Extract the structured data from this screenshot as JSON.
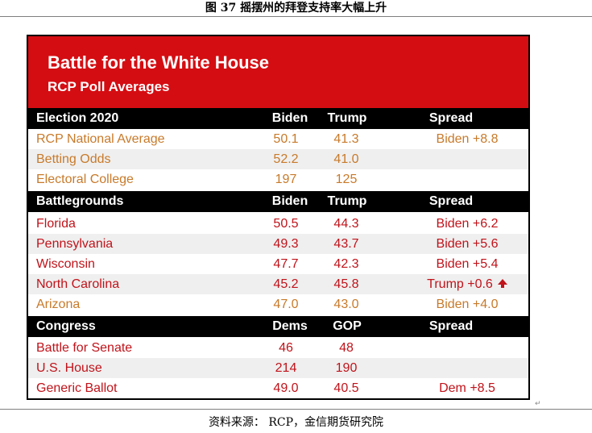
{
  "figure_title": "图 37 摇摆州的拜登支持率大幅上升",
  "banner": {
    "title": "Battle for the White House",
    "subtitle": "RCP Poll Averages"
  },
  "sections": [
    {
      "header": [
        "Election 2020",
        "Biden",
        "Trump",
        "Spread"
      ],
      "rows": [
        {
          "name": "RCP National Average",
          "a": "50.1",
          "b": "41.3",
          "spread": "Biden +8.8",
          "color": "orange"
        },
        {
          "name": "Betting Odds",
          "a": "52.2",
          "b": "41.0",
          "spread": "",
          "color": "orange"
        },
        {
          "name": "Electoral College",
          "a": "197",
          "b": "125",
          "spread": "",
          "color": "orange"
        }
      ]
    },
    {
      "header": [
        "Battlegrounds",
        "Biden",
        "Trump",
        "Spread"
      ],
      "rows": [
        {
          "name": "Florida",
          "a": "50.5",
          "b": "44.3",
          "spread": "Biden +6.2",
          "color": "red"
        },
        {
          "name": "Pennsylvania",
          "a": "49.3",
          "b": "43.7",
          "spread": "Biden +5.6",
          "color": "red"
        },
        {
          "name": "Wisconsin",
          "a": "47.7",
          "b": "42.3",
          "spread": "Biden +5.4",
          "color": "red"
        },
        {
          "name": "North Carolina",
          "a": "45.2",
          "b": "45.8",
          "spread": "Trump +0.6",
          "color": "red",
          "arrow": true
        },
        {
          "name": "Arizona",
          "a": "47.0",
          "b": "43.0",
          "spread": "Biden +4.0",
          "color": "orange"
        }
      ]
    },
    {
      "header": [
        "Congress",
        "Dems",
        "GOP",
        "Spread"
      ],
      "rows": [
        {
          "name": "Battle for Senate",
          "a": "46",
          "b": "48",
          "spread": "",
          "color": "red"
        },
        {
          "name": "U.S. House",
          "a": "214",
          "b": "190",
          "spread": "",
          "color": "red"
        },
        {
          "name": "Generic Ballot",
          "a": "49.0",
          "b": "40.5",
          "spread": "Dem +8.5",
          "color": "red"
        }
      ]
    }
  ],
  "source": "资料来源： RCP，金信期货研究院",
  "colors": {
    "banner": "#d40d12",
    "header": "#000000",
    "orange_text": "#c87a2a",
    "red_text": "#c0131a",
    "alt_row": "#efefef"
  }
}
